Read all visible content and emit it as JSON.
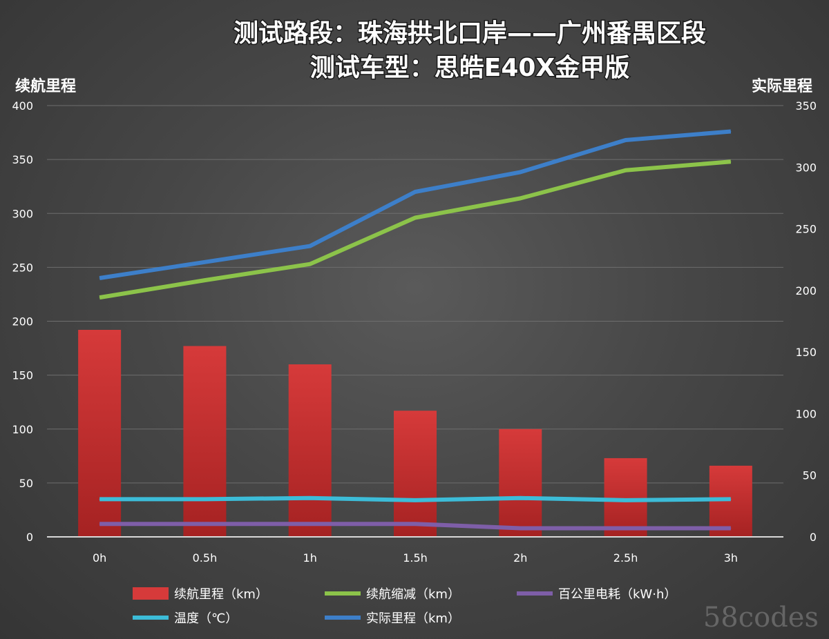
{
  "chart_data": {
    "type": "bar",
    "title": "测试路段：珠海拱北口岸——广州番禺区段",
    "subtitle": "测试车型：思皓E40X金甲版",
    "ylabel_left": "续航里程",
    "ylabel_right": "实际里程",
    "categories": [
      "0h",
      "0.5h",
      "1h",
      "1.5h",
      "2h",
      "2.5h",
      "3h"
    ],
    "ylim_left": [
      0,
      400
    ],
    "yticks_left": [
      0,
      50,
      100,
      150,
      200,
      250,
      300,
      350,
      400
    ],
    "ylim_right": [
      0,
      350
    ],
    "yticks_right": [
      0,
      50,
      100,
      150,
      200,
      250,
      300,
      350
    ],
    "grid": true,
    "legend_position": "bottom",
    "series": [
      {
        "name": "续航里程（km）",
        "kind": "bar",
        "axis": "left",
        "color": "#d63a3a",
        "values": [
          192,
          177,
          160,
          117,
          100,
          73,
          66
        ]
      },
      {
        "name": "续航缩减（km）",
        "kind": "line",
        "axis": "left",
        "color": "#8cc34a",
        "values": [
          222,
          238,
          253,
          296,
          314,
          340,
          348
        ]
      },
      {
        "name": "百公里电耗（kW·h）",
        "kind": "line",
        "axis": "left",
        "color": "#7e5ea8",
        "values": [
          12,
          12,
          12,
          12,
          8,
          8,
          8
        ]
      },
      {
        "name": "温度（℃）",
        "kind": "line",
        "axis": "left",
        "color": "#3cbcd8",
        "values": [
          35,
          35,
          36,
          34,
          36,
          34,
          35
        ]
      },
      {
        "name": "实际里程（km）",
        "kind": "line",
        "axis": "right",
        "color": "#3d7fc9",
        "values": [
          210,
          223,
          236,
          280,
          296,
          322,
          329
        ]
      }
    ],
    "watermark": "58codes"
  }
}
